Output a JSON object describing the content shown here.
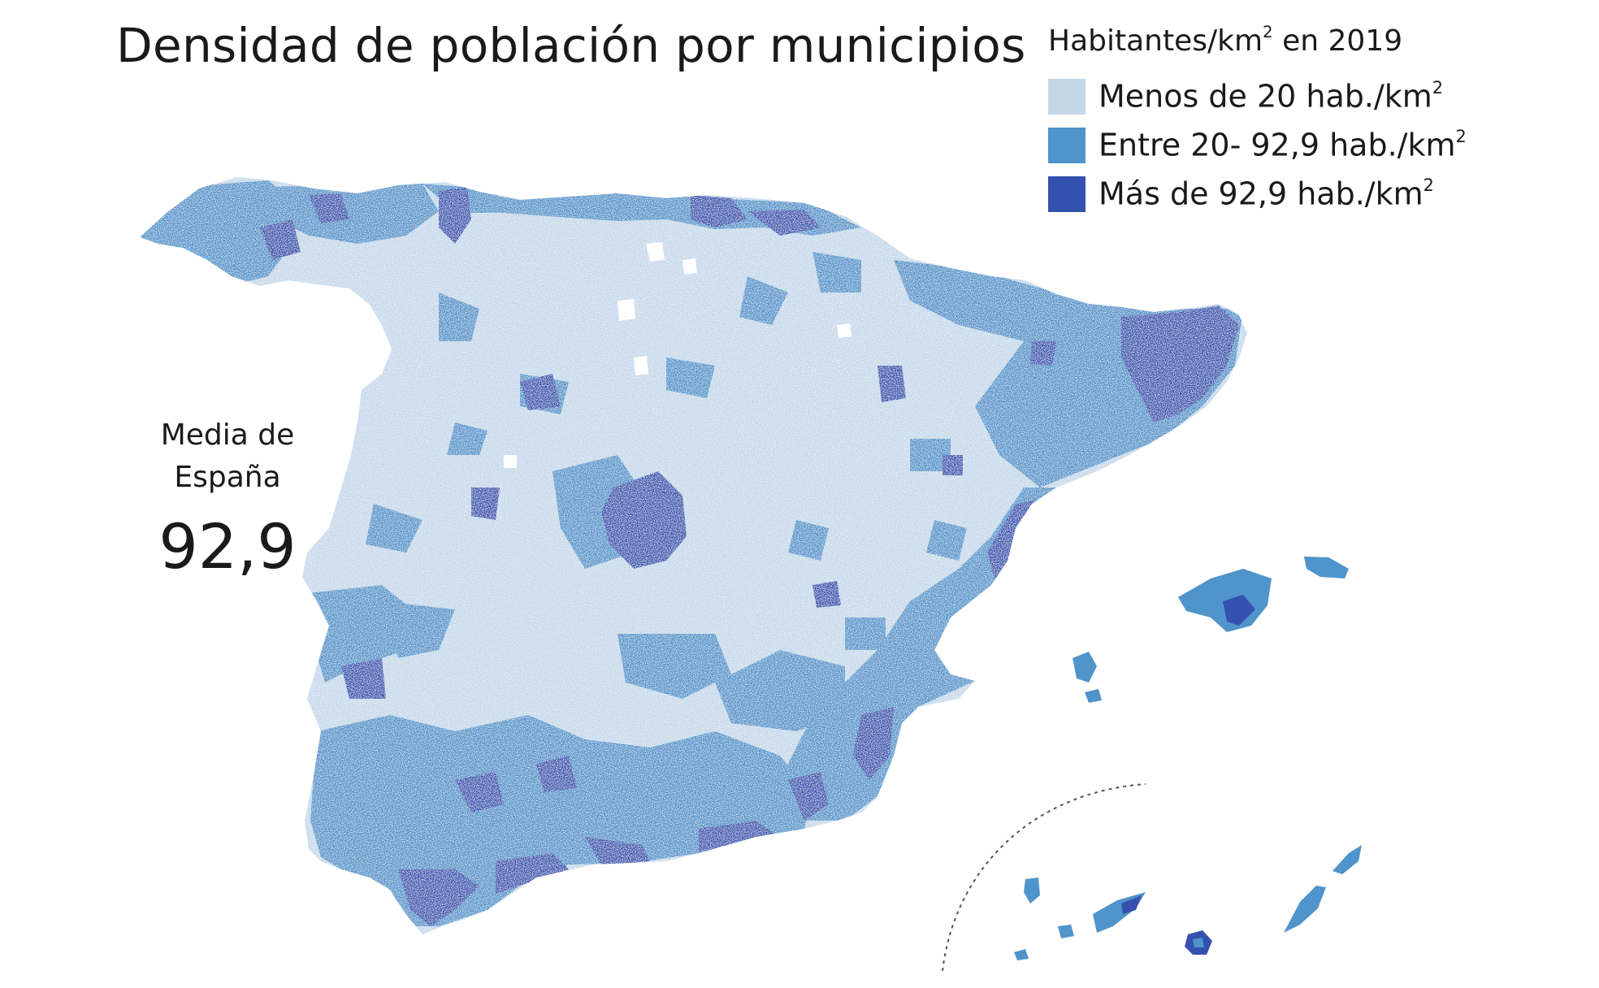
{
  "title": "Densidad de población por municipios",
  "legend": {
    "title": "Habitantes/km",
    "title_sup": "2",
    "title_suffix": " en 2019",
    "items": [
      {
        "label": "Menos de 20 hab./km",
        "sup": "2",
        "color": "#c5d8ea"
      },
      {
        "label": "Entre 20- 92,9 hab./km",
        "sup": "2",
        "color": "#4f94cb"
      },
      {
        "label": "Más de 92,9 hab./km",
        "sup": "2",
        "color": "#3551b0"
      }
    ]
  },
  "average": {
    "label_line1": "Media de",
    "label_line2": "España",
    "value": "92,9"
  },
  "colors": {
    "low": "#c5d8ea",
    "medium": "#4f94cb",
    "high": "#3551b0",
    "background": "#ffffff"
  }
}
